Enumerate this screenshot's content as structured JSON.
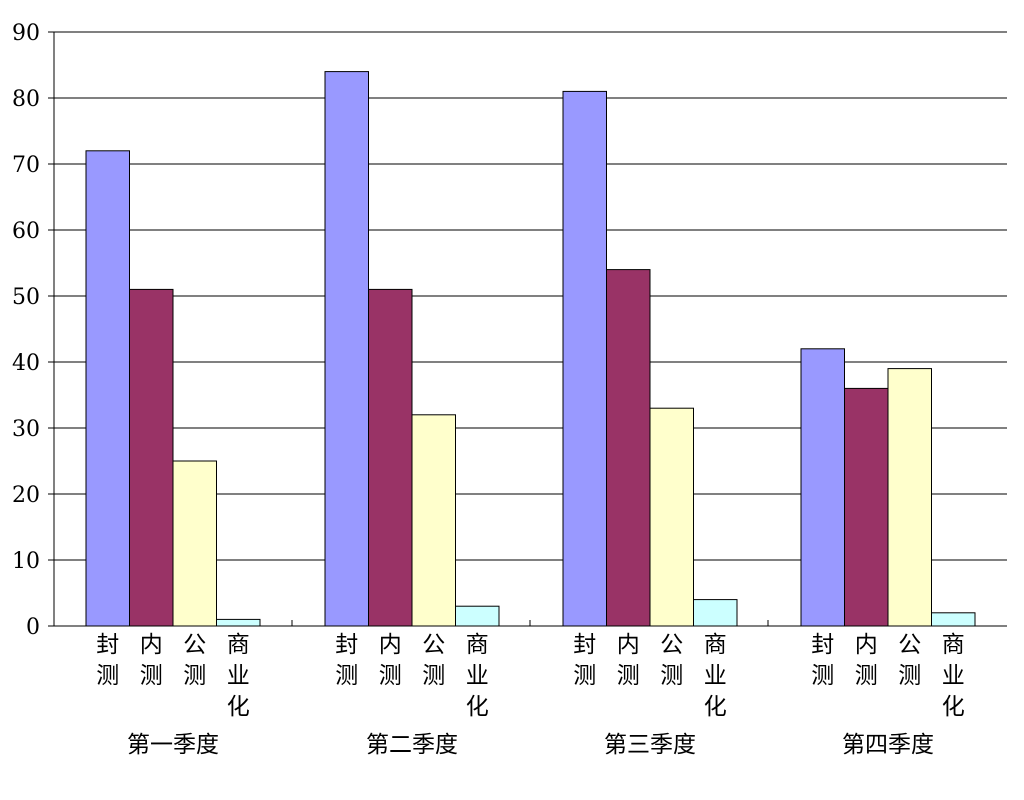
{
  "chart_data": {
    "type": "bar",
    "title": "",
    "xlabel": "",
    "ylabel": "",
    "ylim": [
      0,
      90
    ],
    "yticks": [
      "0",
      "10",
      "20",
      "30",
      "40",
      "50",
      "60",
      "70",
      "80",
      "90"
    ],
    "grid": true,
    "legend": "none",
    "categories": [
      "第一季度",
      "第二季度",
      "第三季度",
      "第四季度"
    ],
    "series": [
      {
        "name": "封测",
        "label_chars": [
          "封",
          "测"
        ],
        "color": "#9999ff",
        "values": [
          72,
          84,
          81,
          42
        ]
      },
      {
        "name": "内测",
        "label_chars": [
          "内",
          "测"
        ],
        "color": "#993366",
        "values": [
          51,
          51,
          54,
          36
        ]
      },
      {
        "name": "公测",
        "label_chars": [
          "公",
          "测"
        ],
        "color": "#ffffcc",
        "values": [
          25,
          32,
          33,
          39
        ]
      },
      {
        "name": "商业化",
        "label_chars": [
          "商",
          "业",
          "化"
        ],
        "color": "#ccffff",
        "values": [
          1,
          3,
          4,
          2
        ]
      }
    ]
  }
}
